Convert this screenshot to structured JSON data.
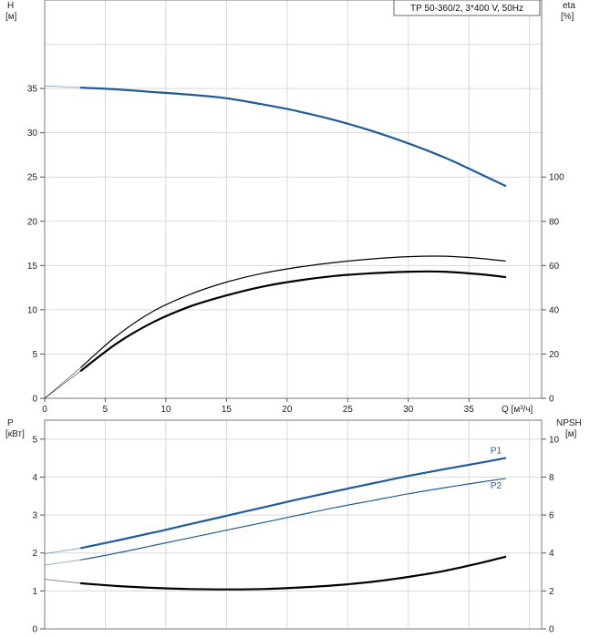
{
  "legend": "TP 50-360/2, 3*400 V, 50Hz",
  "chart_data": [
    {
      "type": "line",
      "title": "",
      "x_axis": {
        "label": "Q [м³/ч]",
        "range": [
          0,
          41
        ],
        "ticks": [
          0,
          5,
          10,
          15,
          20,
          25,
          30,
          35
        ],
        "grid": [
          0,
          5,
          10,
          15,
          20,
          25,
          30,
          35,
          40
        ]
      },
      "y_left": {
        "label_line1": "H",
        "label_line2": "[м]",
        "range": [
          0,
          45
        ],
        "ticks": [
          0,
          5,
          10,
          15,
          20,
          25,
          30,
          35
        ]
      },
      "y_right": {
        "label_line1": "eta",
        "label_line2": "[%]",
        "range": [
          0,
          180
        ],
        "ticks": [
          0,
          20,
          40,
          60,
          80,
          100
        ]
      },
      "grid": true,
      "series": [
        {
          "name": "",
          "axis": "left",
          "color": "#1f5c99",
          "stroke_width": 2.2,
          "thin_prefix": [
            [
              0,
              35.3
            ],
            [
              3,
              35.1
            ]
          ],
          "points": [
            [
              3,
              35.1
            ],
            [
              6,
              34.9
            ],
            [
              9,
              34.6
            ],
            [
              12,
              34.3
            ],
            [
              15,
              33.9
            ],
            [
              18,
              33.2
            ],
            [
              21,
              32.4
            ],
            [
              24,
              31.4
            ],
            [
              27,
              30.2
            ],
            [
              30,
              28.8
            ],
            [
              33,
              27.2
            ],
            [
              36,
              25.3
            ],
            [
              38,
              24.0
            ]
          ]
        },
        {
          "name": "",
          "axis": "right",
          "color": "#000000",
          "stroke_width": 1.2,
          "thin_prefix": [
            [
              0,
              0
            ],
            [
              3,
              14.0
            ]
          ],
          "points": [
            [
              3,
              14.0
            ],
            [
              6,
              28.5
            ],
            [
              9,
              39.5
            ],
            [
              12,
              47.0
            ],
            [
              15,
              52.5
            ],
            [
              18,
              56.5
            ],
            [
              21,
              59.3
            ],
            [
              24,
              61.4
            ],
            [
              27,
              63.0
            ],
            [
              30,
              64.0
            ],
            [
              33,
              64.2
            ],
            [
              36,
              63.2
            ],
            [
              38,
              62.0
            ]
          ]
        },
        {
          "name": "",
          "axis": "right",
          "color": "#000000",
          "stroke_width": 2.2,
          "thin_prefix": [
            [
              0,
              0
            ],
            [
              3,
              12.5
            ]
          ],
          "points": [
            [
              3,
              12.5
            ],
            [
              6,
              25.0
            ],
            [
              9,
              34.5
            ],
            [
              12,
              41.5
            ],
            [
              15,
              46.5
            ],
            [
              18,
              50.5
            ],
            [
              21,
              53.3
            ],
            [
              24,
              55.3
            ],
            [
              27,
              56.5
            ],
            [
              30,
              57.2
            ],
            [
              33,
              57.2
            ],
            [
              36,
              56.0
            ],
            [
              38,
              54.8
            ]
          ]
        }
      ]
    },
    {
      "type": "line",
      "title": "",
      "x_axis": {
        "range": [
          0,
          41
        ],
        "grid": [
          0,
          5,
          10,
          15,
          20,
          25,
          30,
          35,
          40
        ]
      },
      "y_left": {
        "label_line1": "P",
        "label_line2": "[кВт]",
        "range": [
          0,
          5.5
        ],
        "ticks": [
          0,
          1,
          2,
          3,
          4,
          5
        ]
      },
      "y_right": {
        "label_line1": "NPSH",
        "label_line2": "[м]",
        "range": [
          0,
          11
        ],
        "ticks": [
          0,
          2,
          4,
          6,
          8,
          10
        ]
      },
      "grid": true,
      "series": [
        {
          "name": "P1",
          "axis": "left",
          "color": "#1f5c99",
          "stroke_width": 2.2,
          "thin_prefix": [
            [
              0,
              1.98
            ],
            [
              3,
              2.13
            ]
          ],
          "points": [
            [
              3,
              2.13
            ],
            [
              6,
              2.33
            ],
            [
              9,
              2.54
            ],
            [
              12,
              2.76
            ],
            [
              15,
              2.98
            ],
            [
              18,
              3.2
            ],
            [
              21,
              3.42
            ],
            [
              24,
              3.63
            ],
            [
              27,
              3.83
            ],
            [
              30,
              4.03
            ],
            [
              33,
              4.21
            ],
            [
              36,
              4.38
            ],
            [
              38,
              4.5
            ]
          ]
        },
        {
          "name": "P2",
          "axis": "left",
          "color": "#1f5c99",
          "stroke_width": 1.2,
          "thin_prefix": [
            [
              0,
              1.68
            ],
            [
              3,
              1.82
            ]
          ],
          "points": [
            [
              3,
              1.82
            ],
            [
              6,
              2.0
            ],
            [
              9,
              2.2
            ],
            [
              12,
              2.4
            ],
            [
              15,
              2.6
            ],
            [
              18,
              2.8
            ],
            [
              21,
              3.0
            ],
            [
              24,
              3.2
            ],
            [
              27,
              3.38
            ],
            [
              30,
              3.56
            ],
            [
              33,
              3.72
            ],
            [
              36,
              3.87
            ],
            [
              38,
              3.96
            ]
          ]
        },
        {
          "name": "",
          "axis": "right",
          "color": "#000000",
          "stroke_width": 2.2,
          "thin_prefix": [
            [
              0,
              2.62
            ],
            [
              3,
              2.4
            ]
          ],
          "points": [
            [
              3,
              2.4
            ],
            [
              6,
              2.26
            ],
            [
              9,
              2.16
            ],
            [
              12,
              2.1
            ],
            [
              15,
              2.08
            ],
            [
              18,
              2.1
            ],
            [
              21,
              2.18
            ],
            [
              24,
              2.3
            ],
            [
              27,
              2.48
            ],
            [
              30,
              2.74
            ],
            [
              33,
              3.06
            ],
            [
              36,
              3.48
            ],
            [
              38,
              3.8
            ]
          ]
        }
      ]
    }
  ]
}
